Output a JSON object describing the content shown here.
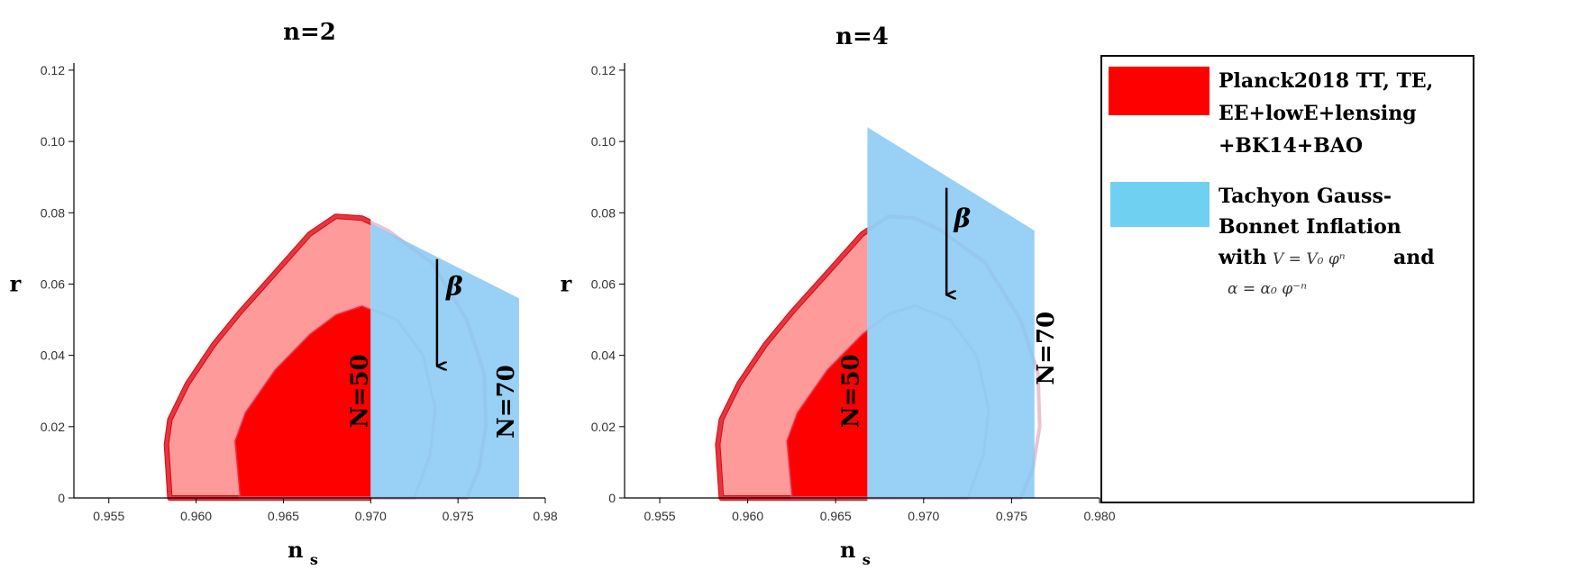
{
  "chart_data": [
    {
      "type": "area",
      "title": "n=2",
      "xlabel": "n",
      "xlabel_sub": "s",
      "ylabel": "r",
      "xlim": [
        0.953,
        0.98
      ],
      "ylim": [
        0,
        0.122
      ],
      "xticks": [
        "0.955",
        "0.960",
        "0.965",
        "0.970",
        "0.975",
        "0.98"
      ],
      "xtick_values": [
        0.955,
        0.96,
        0.965,
        0.97,
        0.975,
        0.98
      ],
      "yticks": [
        "0",
        "0.02",
        "0.04",
        "0.06",
        "0.08",
        "0.10",
        "0.12"
      ],
      "ytick_values": [
        0,
        0.02,
        0.04,
        0.06,
        0.08,
        0.1,
        0.12
      ],
      "planck_outer_contour": [
        [
          0.9585,
          0
        ],
        [
          0.9583,
          0.015
        ],
        [
          0.9585,
          0.022
        ],
        [
          0.9595,
          0.032
        ],
        [
          0.961,
          0.043
        ],
        [
          0.9625,
          0.052
        ],
        [
          0.9645,
          0.063
        ],
        [
          0.9665,
          0.074
        ],
        [
          0.968,
          0.079
        ],
        [
          0.9695,
          0.0785
        ],
        [
          0.971,
          0.075
        ],
        [
          0.9735,
          0.066
        ],
        [
          0.9755,
          0.05
        ],
        [
          0.9765,
          0.035
        ],
        [
          0.9766,
          0.02
        ],
        [
          0.9762,
          0.008
        ],
        [
          0.9755,
          0
        ]
      ],
      "planck_inner_contour": [
        [
          0.9625,
          0
        ],
        [
          0.9622,
          0.016
        ],
        [
          0.9628,
          0.024
        ],
        [
          0.9645,
          0.036
        ],
        [
          0.9665,
          0.046
        ],
        [
          0.968,
          0.0515
        ],
        [
          0.9695,
          0.054
        ],
        [
          0.9715,
          0.05
        ],
        [
          0.973,
          0.04
        ],
        [
          0.9737,
          0.025
        ],
        [
          0.9734,
          0.012
        ],
        [
          0.9725,
          0
        ]
      ],
      "model_region": [
        [
          0.97,
          0
        ],
        [
          0.97,
          0.077
        ],
        [
          0.9785,
          0.056
        ],
        [
          0.9785,
          0
        ]
      ],
      "planck_filled_until_x": 0.97,
      "labels": {
        "n50": "N=50",
        "n70": "N=70",
        "beta": "β"
      },
      "n50_position": [
        0.9698,
        0.03
      ],
      "n70_position": [
        0.9782,
        0.027
      ],
      "beta_arrow": {
        "x": 0.9738,
        "from": 0.067,
        "to": 0.037
      },
      "beta_label_position": [
        0.9748,
        0.057
      ]
    },
    {
      "type": "area",
      "title": "n=4",
      "xlabel": "n",
      "xlabel_sub": "s",
      "ylabel": "r",
      "xlim": [
        0.953,
        0.98
      ],
      "ylim": [
        0,
        0.122
      ],
      "xticks": [
        "0.955",
        "0.960",
        "0.965",
        "0.970",
        "0.975",
        "0.980"
      ],
      "xtick_values": [
        0.955,
        0.96,
        0.965,
        0.97,
        0.975,
        0.98
      ],
      "yticks": [
        "0",
        "0.02",
        "0.04",
        "0.06",
        "0.08",
        "0.10",
        "0.12"
      ],
      "ytick_values": [
        0,
        0.02,
        0.04,
        0.06,
        0.08,
        0.1,
        0.12
      ],
      "planck_outer_contour": [
        [
          0.9585,
          0
        ],
        [
          0.9583,
          0.015
        ],
        [
          0.9585,
          0.022
        ],
        [
          0.9595,
          0.032
        ],
        [
          0.961,
          0.043
        ],
        [
          0.9625,
          0.052
        ],
        [
          0.9645,
          0.063
        ],
        [
          0.9665,
          0.074
        ],
        [
          0.968,
          0.079
        ],
        [
          0.9695,
          0.0785
        ],
        [
          0.971,
          0.075
        ],
        [
          0.9735,
          0.066
        ],
        [
          0.9755,
          0.05
        ],
        [
          0.9765,
          0.035
        ],
        [
          0.9766,
          0.02
        ],
        [
          0.9762,
          0.008
        ],
        [
          0.9755,
          0
        ]
      ],
      "planck_inner_contour": [
        [
          0.9625,
          0
        ],
        [
          0.9622,
          0.016
        ],
        [
          0.9628,
          0.024
        ],
        [
          0.9645,
          0.036
        ],
        [
          0.9665,
          0.046
        ],
        [
          0.968,
          0.0515
        ],
        [
          0.9695,
          0.054
        ],
        [
          0.9715,
          0.05
        ],
        [
          0.973,
          0.04
        ],
        [
          0.9737,
          0.025
        ],
        [
          0.9734,
          0.012
        ],
        [
          0.9725,
          0
        ]
      ],
      "model_region": [
        [
          0.9668,
          0
        ],
        [
          0.9668,
          0.104
        ],
        [
          0.9763,
          0.075
        ],
        [
          0.9763,
          0
        ]
      ],
      "planck_filled_until_x": 0.9668,
      "labels": {
        "n50": "N=50",
        "n70": "N=70",
        "beta": "β"
      },
      "n50_position": [
        0.9663,
        0.03
      ],
      "n70_position": [
        0.9774,
        0.042
      ],
      "beta_arrow": {
        "x": 0.9713,
        "from": 0.087,
        "to": 0.057
      },
      "beta_label_position": [
        0.9722,
        0.076
      ]
    }
  ],
  "legend": {
    "items": [
      {
        "lines": [
          "Planck2018 TT, TE,",
          "EE+lowE+lensing",
          "+BK14+BAO"
        ],
        "color": "#ff0000"
      },
      {
        "lines": [
          "Tachyon Gauss-",
          "Bonnet Inflation"
        ],
        "color": "#6fd0f2"
      }
    ],
    "with_text": "with",
    "formula_v": "V = V₀ φⁿ",
    "and_text": "and",
    "formula_alpha": "α = α₀ φ⁻ⁿ"
  },
  "colors": {
    "planck_outer_fill": "#ff9a9a",
    "planck_inner_fill": "#ff0000",
    "planck_edge": "#ee0000",
    "model_fill": "#87c8f3",
    "axis": "#000000"
  }
}
